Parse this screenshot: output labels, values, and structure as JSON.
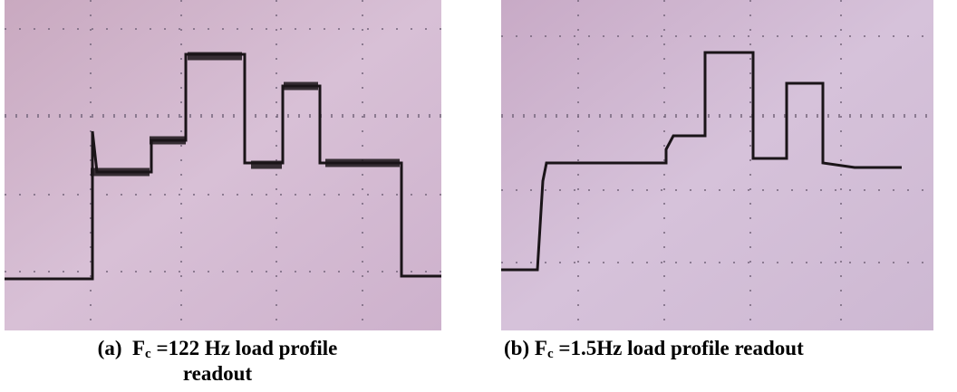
{
  "figure": {
    "panels": [
      {
        "caption": {
          "label": "(a)",
          "symbol": "F",
          "subscript": "c",
          "text": " =122 Hz load profile readout"
        }
      },
      {
        "caption": {
          "label": "(b)",
          "symbol": "F",
          "subscript": "c",
          "text": " =1.5Hz load profile readout"
        }
      }
    ]
  }
}
